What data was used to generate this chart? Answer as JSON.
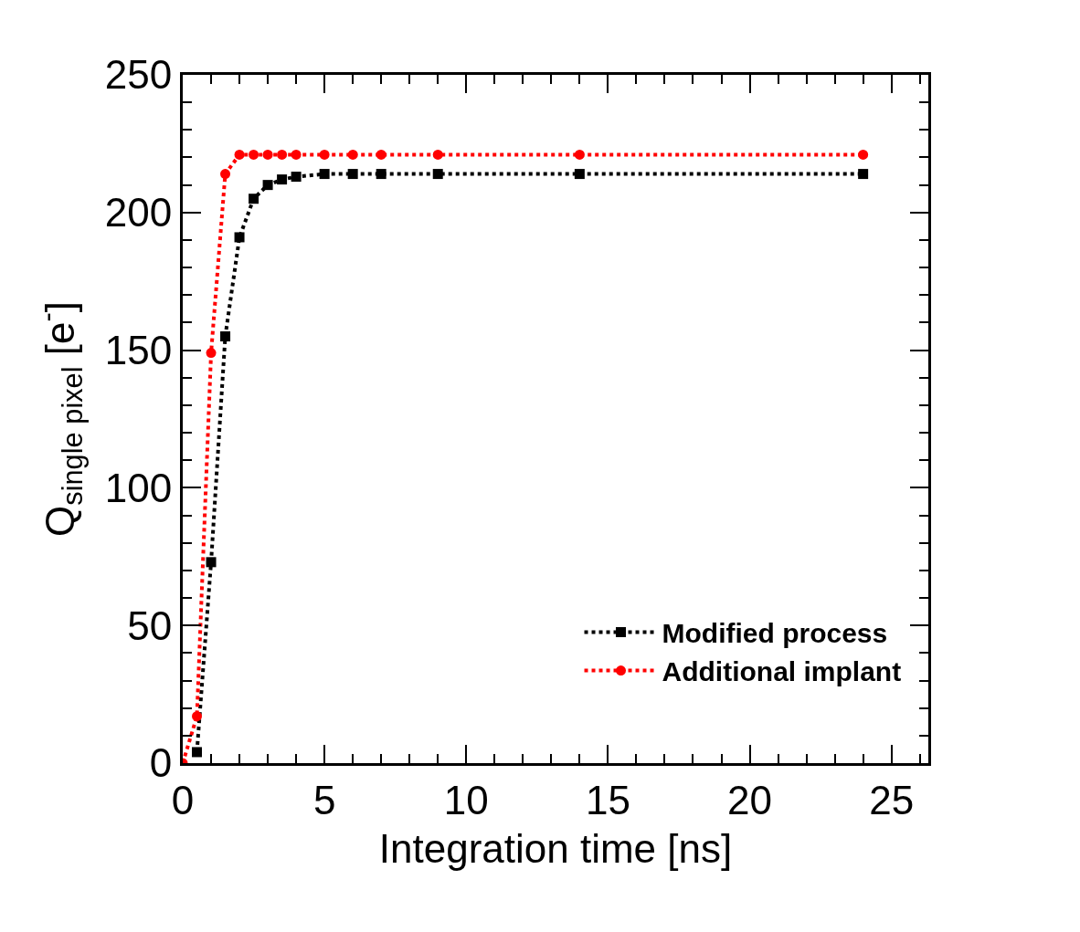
{
  "chart_data": {
    "type": "line",
    "xlabel": "Integration time [ns]",
    "ylabel": "Q$_{single pixel}$ [e$^{-}$]",
    "xlim": [
      0,
      26.3
    ],
    "xticks": [
      0,
      5,
      10,
      15,
      20,
      25
    ],
    "ylim": [
      0,
      250
    ],
    "yticks": [
      0,
      50,
      100,
      150,
      200,
      250
    ],
    "series": [
      {
        "name": "Modified process",
        "color": "#000000",
        "marker": "square",
        "x": [
          0.5,
          1,
          1.5,
          2,
          2.5,
          3,
          3.5,
          4,
          5,
          6,
          7,
          9,
          14,
          24
        ],
        "values": [
          4,
          73,
          155,
          191,
          205,
          210,
          212,
          213,
          214,
          214,
          214,
          214,
          214,
          214
        ]
      },
      {
        "name": "Additional implant",
        "color": "#ff0000",
        "marker": "circle",
        "x": [
          0,
          0.5,
          1,
          1.5,
          2,
          2.5,
          3,
          3.5,
          4,
          5,
          6,
          7,
          9,
          14,
          24
        ],
        "values": [
          0,
          17,
          149,
          214,
          221,
          221,
          221,
          221,
          221,
          221,
          221,
          221,
          221,
          221,
          221
        ]
      }
    ],
    "line_style": "dotted",
    "legend": "bottom right"
  }
}
